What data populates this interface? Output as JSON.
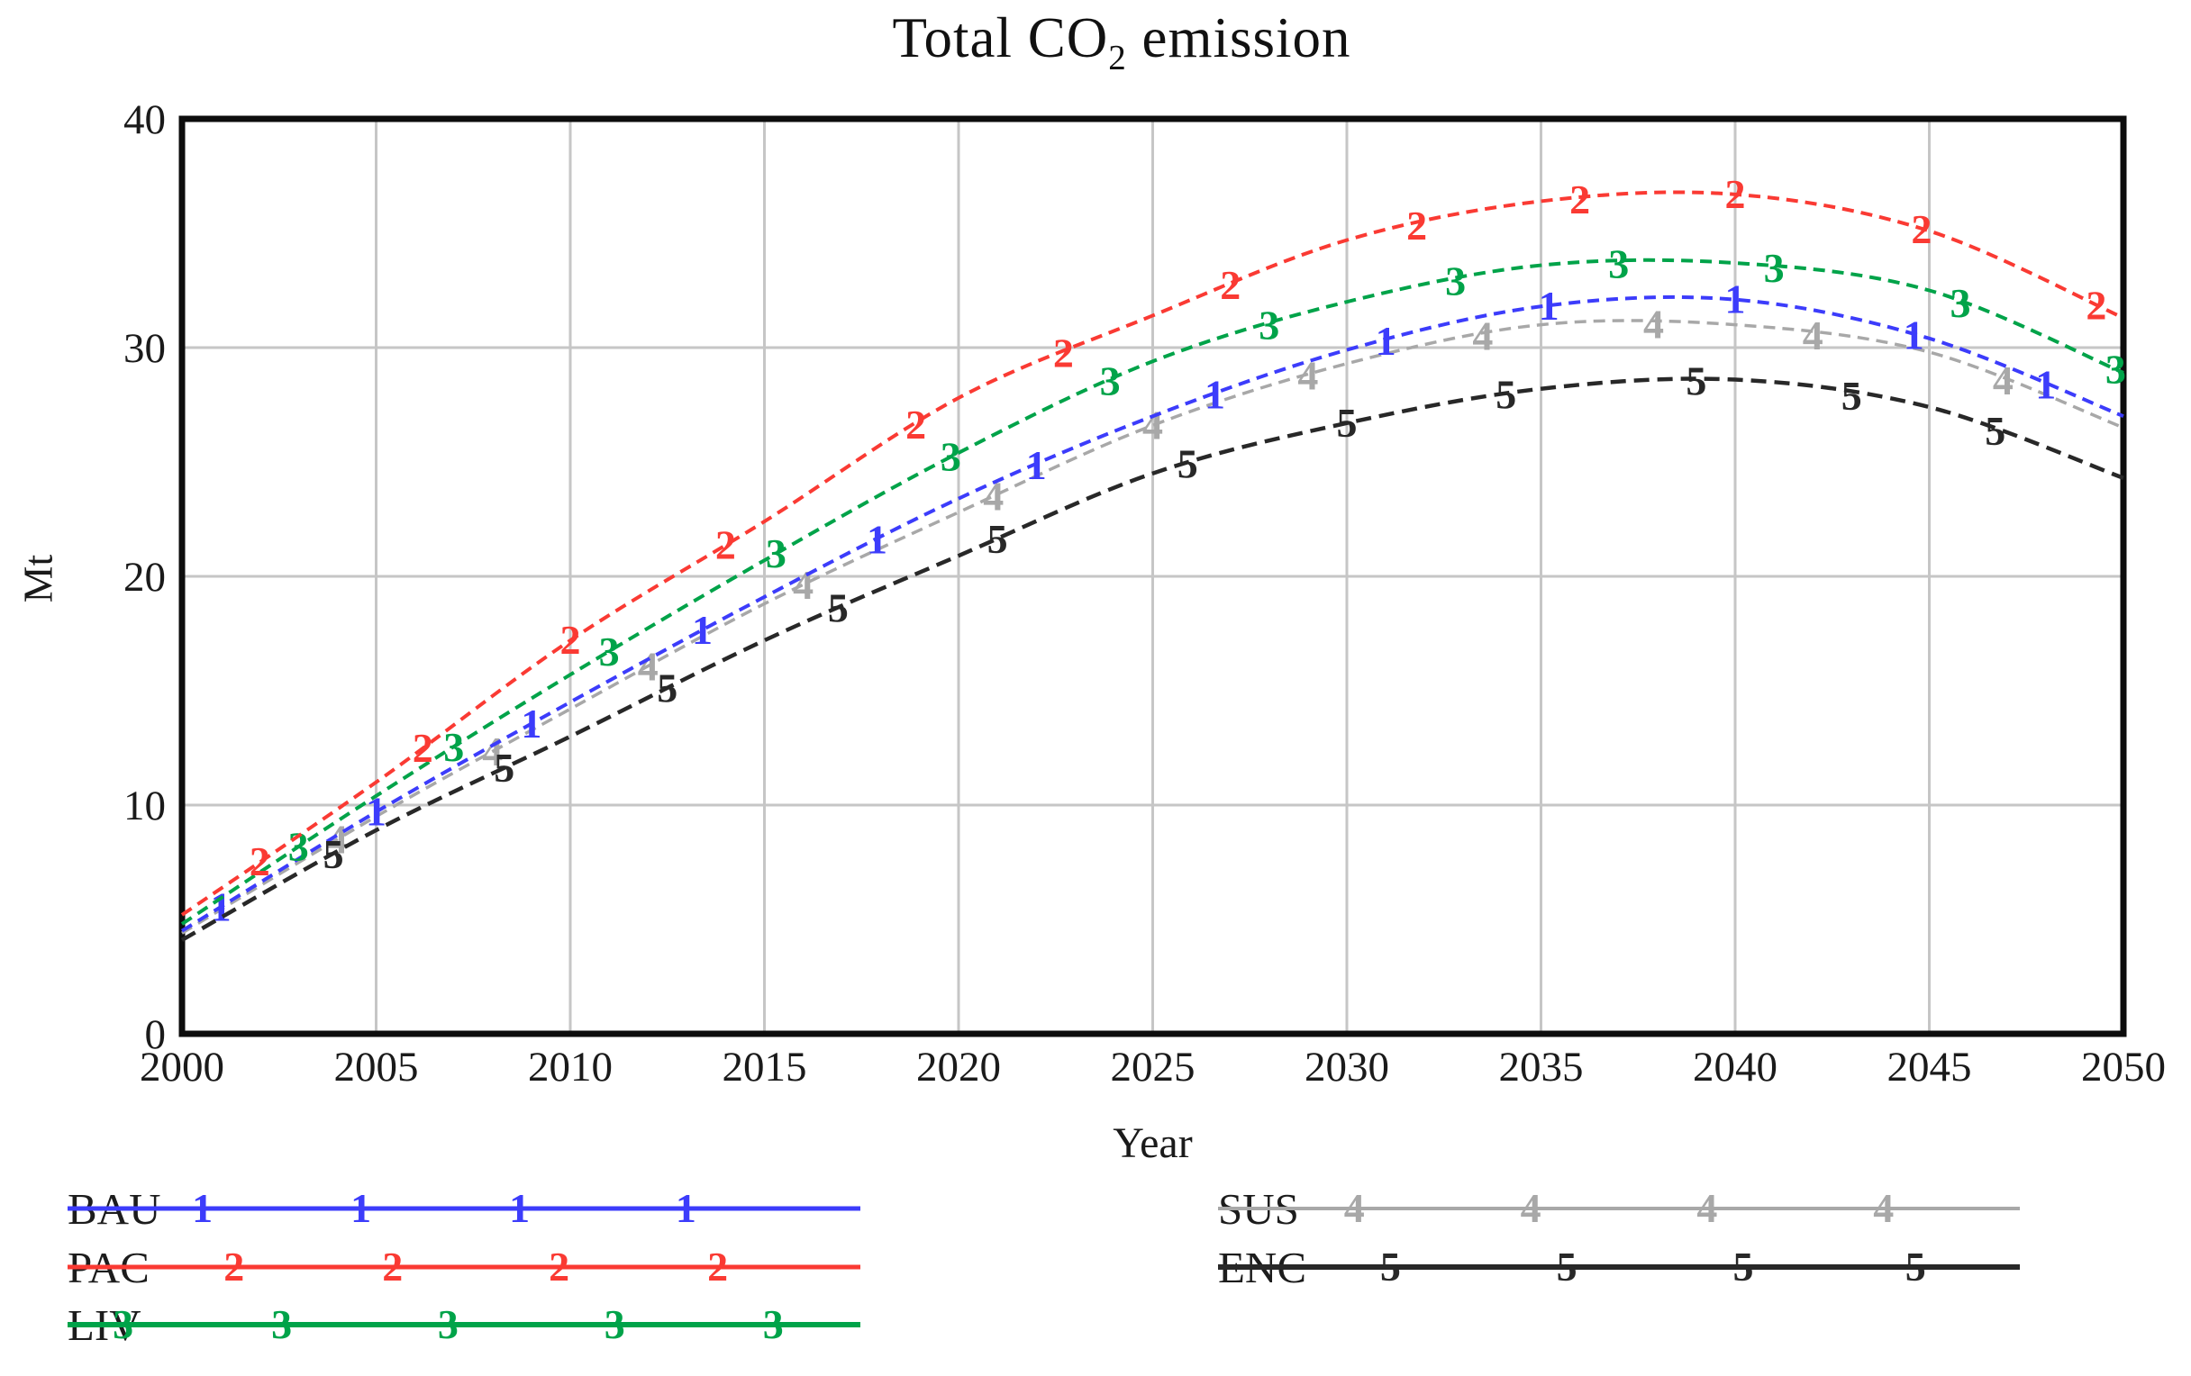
{
  "title": {
    "text_prefix": "Total CO",
    "subscript": "2",
    "text_suffix": " emission"
  },
  "axes": {
    "x_label": "Year",
    "y_label": "Mt",
    "x_ticks": [
      "2000",
      "2005",
      "2010",
      "2015",
      "2020",
      "2025",
      "2030",
      "2035",
      "2040",
      "2045",
      "2050"
    ],
    "y_ticks": [
      "0",
      "10",
      "20",
      "30",
      "40"
    ]
  },
  "chart_data": {
    "type": "line",
    "title": "Total CO2 emission",
    "xlabel": "Year",
    "ylabel": "Mt",
    "xlim": [
      2000,
      2050
    ],
    "ylim": [
      0,
      40
    ],
    "grid": true,
    "x_grid_step": 5,
    "y_grid_step": 10,
    "legend_position": "bottom",
    "x": [
      2000,
      2005,
      2010,
      2015,
      2020,
      2025,
      2030,
      2035,
      2040,
      2045,
      2050
    ],
    "series": [
      {
        "name": "BAU",
        "marker": "1",
        "color": "#3C3CFB",
        "values": [
          4.5,
          9.7,
          14.5,
          19.1,
          23.4,
          27.0,
          29.9,
          31.8,
          32.1,
          30.4,
          27.0
        ],
        "marker_years": [
          2001,
          2005,
          2009,
          2013.4,
          2017.9,
          2022,
          2026.6,
          2031,
          2035.2,
          2040,
          2044.6,
          2048
        ],
        "legend_marker_fracs": [
          0.17,
          0.37,
          0.57,
          0.78
        ]
      },
      {
        "name": "PAC",
        "marker": "2",
        "color": "#FA3A33",
        "values": [
          5.2,
          11.0,
          17.2,
          22.4,
          27.8,
          31.4,
          34.7,
          36.4,
          36.7,
          35.1,
          31.3
        ],
        "marker_years": [
          2002,
          2006.2,
          2010,
          2014,
          2018.9,
          2022.7,
          2027,
          2031.8,
          2036,
          2040,
          2044.8,
          2049.3
        ],
        "legend_marker_fracs": [
          0.21,
          0.41,
          0.62,
          0.82
        ]
      },
      {
        "name": "LIV",
        "marker": "3",
        "color": "#00A349",
        "values": [
          4.8,
          10.4,
          15.7,
          20.7,
          25.4,
          29.4,
          32.0,
          33.6,
          33.7,
          32.5,
          28.9
        ],
        "marker_years": [
          2003,
          2007,
          2011,
          2015.3,
          2019.8,
          2023.9,
          2028,
          2032.8,
          2037,
          2041,
          2045.8,
          2049.8
        ],
        "legend_marker_fracs": [
          0.07,
          0.27,
          0.48,
          0.69,
          0.89
        ]
      },
      {
        "name": "SUS",
        "marker": "4",
        "color": "#A8A8A8",
        "values": [
          4.4,
          9.5,
          14.2,
          18.8,
          22.8,
          26.6,
          29.3,
          31.0,
          31.0,
          29.8,
          26.5
        ],
        "marker_years": [
          2004,
          2008,
          2012,
          2016,
          2020.9,
          2025,
          2029,
          2033.5,
          2037.9,
          2042,
          2046.9
        ],
        "legend_marker_fracs": [
          0.17,
          0.39,
          0.61,
          0.83
        ]
      },
      {
        "name": "ENC",
        "marker": "5",
        "color": "#282828",
        "values": [
          4.1,
          8.9,
          13.0,
          17.2,
          20.9,
          24.5,
          26.7,
          28.2,
          28.6,
          27.4,
          24.3
        ],
        "marker_years": [
          2003.9,
          2008.3,
          2012.5,
          2016.9,
          2021,
          2025.9,
          2030,
          2034.1,
          2039,
          2043,
          2046.7
        ],
        "legend_marker_fracs": [
          0.215,
          0.435,
          0.655,
          0.87
        ]
      }
    ]
  },
  "legend": {
    "columns": [
      {
        "items": [
          "BAU",
          "PAC",
          "LIV"
        ]
      },
      {
        "items": [
          "SUS",
          "ENC"
        ]
      }
    ]
  },
  "style": {
    "grid_color": "#c6c6c6",
    "frame_color": "#0d0d0d",
    "tick_color": "#1a1a1a"
  }
}
